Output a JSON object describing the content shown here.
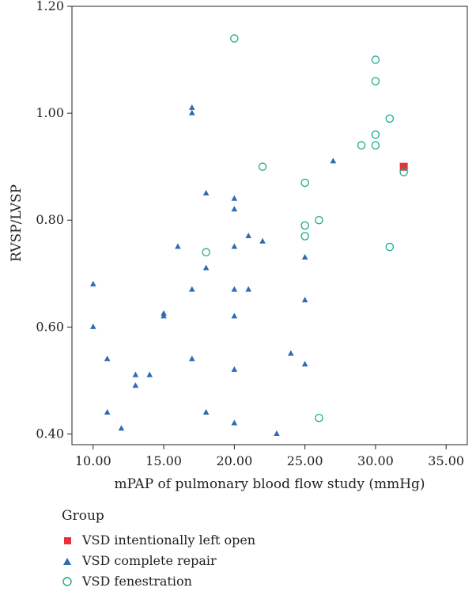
{
  "chart_data": {
    "type": "scatter",
    "title": "",
    "xlabel": "mPAP of pulmonary blood flow study (mmHg)",
    "ylabel": "RVSP/LVSP",
    "xlim": [
      8.5,
      36.5
    ],
    "ylim": [
      0.38,
      1.2
    ],
    "x_ticks": [
      "10.00",
      "15.00",
      "20.00",
      "25.00",
      "30.00",
      "35.00"
    ],
    "x_tick_values": [
      10,
      15,
      20,
      25,
      30,
      35
    ],
    "y_ticks": [
      "0.40",
      "0.60",
      "0.80",
      "1.00",
      "1.20"
    ],
    "y_tick_values": [
      0.4,
      0.6,
      0.8,
      1.0,
      1.2
    ],
    "grid": false,
    "legend": {
      "title": "Group",
      "placement": "bottom-left"
    },
    "series": [
      {
        "name": "VSD intentionally left open",
        "marker": "square",
        "color": "#e8313a",
        "points": [
          [
            32,
            0.9
          ]
        ]
      },
      {
        "name": "VSD complete repair",
        "marker": "triangle",
        "color": "#2f6cb0",
        "points": [
          [
            10,
            0.68
          ],
          [
            10,
            0.6
          ],
          [
            11,
            0.54
          ],
          [
            11,
            0.44
          ],
          [
            12,
            0.41
          ],
          [
            13,
            0.51
          ],
          [
            13,
            0.49
          ],
          [
            14,
            0.51
          ],
          [
            15,
            0.625
          ],
          [
            15,
            0.62
          ],
          [
            16,
            0.75
          ],
          [
            17,
            1.01
          ],
          [
            17,
            1.0
          ],
          [
            17,
            0.67
          ],
          [
            17,
            0.54
          ],
          [
            18,
            0.85
          ],
          [
            18,
            0.71
          ],
          [
            18,
            0.44
          ],
          [
            20,
            0.84
          ],
          [
            20,
            0.82
          ],
          [
            20,
            0.75
          ],
          [
            20,
            0.67
          ],
          [
            20,
            0.62
          ],
          [
            20,
            0.52
          ],
          [
            20,
            0.42
          ],
          [
            21,
            0.77
          ],
          [
            21,
            0.67
          ],
          [
            22,
            0.76
          ],
          [
            23,
            0.4
          ],
          [
            24,
            0.55
          ],
          [
            25,
            0.73
          ],
          [
            25,
            0.65
          ],
          [
            25,
            0.53
          ],
          [
            27,
            0.91
          ]
        ]
      },
      {
        "name": "VSD fenestration",
        "marker": "open-circle",
        "color": "#1aaa8a",
        "points": [
          [
            20,
            1.14
          ],
          [
            30,
            1.1
          ],
          [
            30,
            1.06
          ],
          [
            31,
            0.99
          ],
          [
            30,
            0.96
          ],
          [
            29,
            0.94
          ],
          [
            30,
            0.94
          ],
          [
            22,
            0.9
          ],
          [
            32,
            0.89
          ],
          [
            25,
            0.87
          ],
          [
            26,
            0.8
          ],
          [
            25,
            0.79
          ],
          [
            25,
            0.77
          ],
          [
            31,
            0.75
          ],
          [
            18,
            0.74
          ],
          [
            26,
            0.43
          ]
        ]
      }
    ]
  }
}
